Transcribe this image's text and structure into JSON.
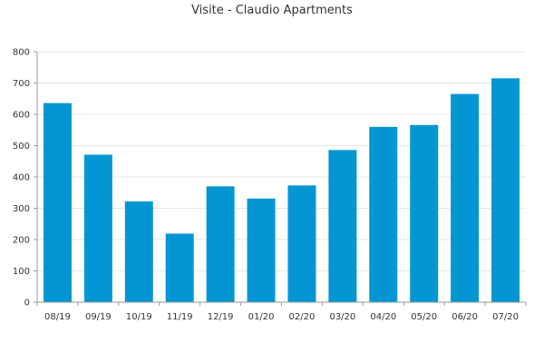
{
  "chart_data": {
    "type": "bar",
    "title": "Visite - Claudio Apartments",
    "xlabel": "",
    "ylabel": "",
    "categories": [
      "08/19",
      "09/19",
      "10/19",
      "11/19",
      "12/19",
      "01/20",
      "02/20",
      "03/20",
      "04/20",
      "05/20",
      "06/20",
      "07/20"
    ],
    "values": [
      636,
      471,
      322,
      219,
      370,
      331,
      373,
      486,
      560,
      566,
      665,
      715
    ],
    "ylim": [
      0,
      800
    ],
    "yticks": [
      0,
      100,
      200,
      300,
      400,
      500,
      600,
      700,
      800
    ],
    "grid": true,
    "legend": "none",
    "colors": {
      "bar": "#0396d2",
      "grid": "#e6e6e6",
      "axis": "#999999",
      "text": "#333333"
    }
  }
}
